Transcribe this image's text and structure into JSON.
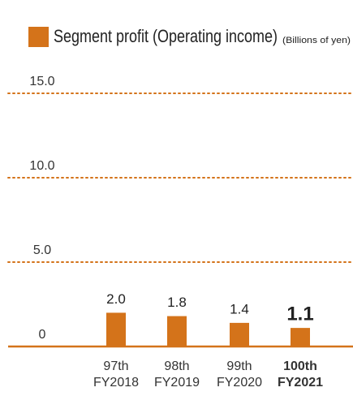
{
  "chart_data": {
    "type": "bar",
    "legend_label": "Segment profit (Operating income)",
    "unit": "(Billions of yen)",
    "periods": [
      "97th",
      "98th",
      "99th",
      "100th"
    ],
    "categories": [
      "FY2018",
      "FY2019",
      "FY2020",
      "FY2021"
    ],
    "values": [
      2.0,
      1.8,
      1.4,
      1.1
    ],
    "value_labels": [
      "2.0",
      "1.8",
      "1.4",
      "1.1"
    ],
    "color": "#d4731a",
    "highlight_index": 3,
    "ylim": [
      0,
      15
    ],
    "yticks": [
      0,
      {
        "value": 5,
        "label": "5.0"
      },
      {
        "value": 10,
        "label": "10.0"
      },
      {
        "value": 15,
        "label": "15.0"
      }
    ],
    "grid": true
  }
}
